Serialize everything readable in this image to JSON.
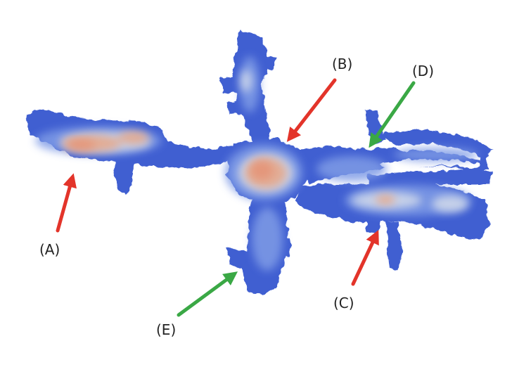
{
  "colors": {
    "background": "#ffffff",
    "structure_base": "#3f5fd1",
    "structure_mid": "#7f9be6",
    "structure_light": "#cfd8ea",
    "structure_hot": "#e4aa90",
    "structure_hottest": "#e59274",
    "arrow_red": "#e3342a",
    "arrow_green": "#3aa845",
    "label_text": "#222222"
  },
  "annotations": [
    {
      "id": "A",
      "label": "(A)",
      "arrow_color": "red"
    },
    {
      "id": "B",
      "label": "(B)",
      "arrow_color": "red"
    },
    {
      "id": "C",
      "label": "(C)",
      "arrow_color": "red"
    },
    {
      "id": "D",
      "label": "(D)",
      "arrow_color": "green"
    },
    {
      "id": "E",
      "label": "(E)",
      "arrow_color": "green"
    }
  ]
}
